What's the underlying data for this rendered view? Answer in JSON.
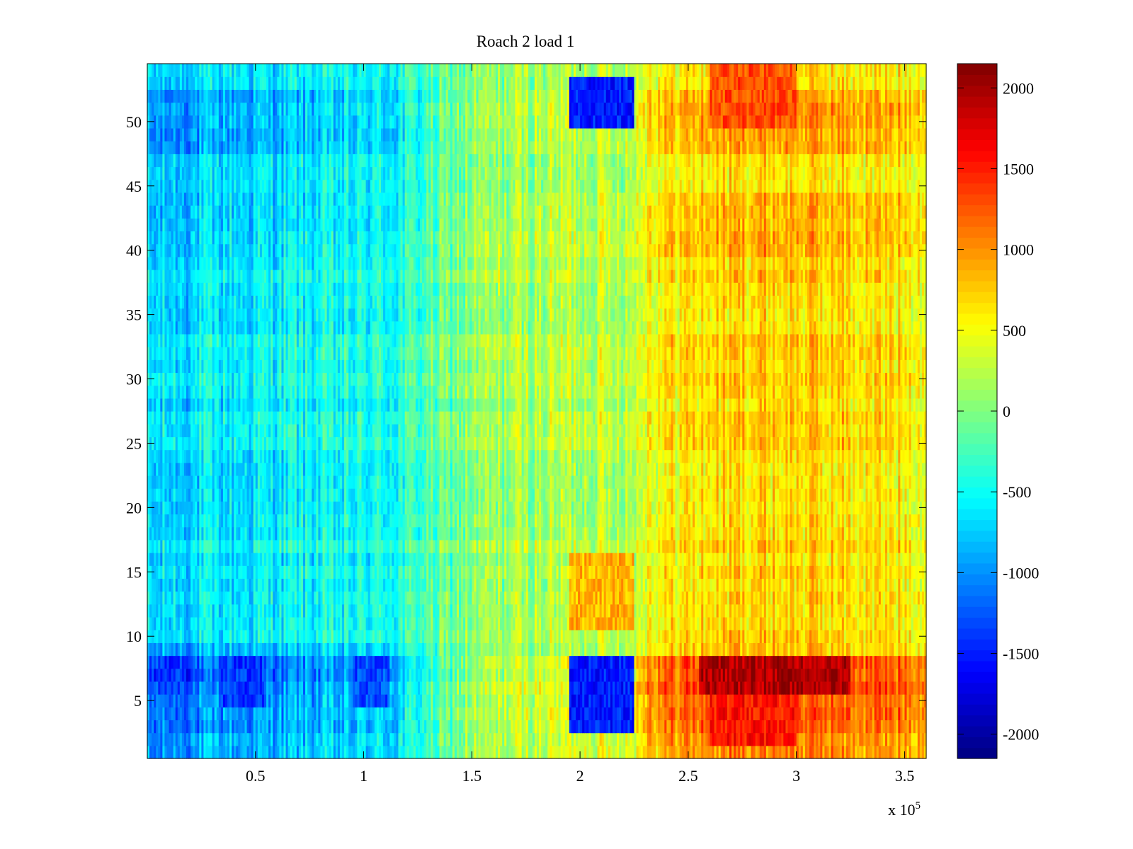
{
  "chart_data": {
    "type": "heatmap",
    "title": "Roach 2 load 1",
    "xlabel": "",
    "ylabel": "",
    "x_multiplier_label": "x 10",
    "x_multiplier_exponent": "5",
    "xlim": [
      0,
      3.6
    ],
    "ylim": [
      0.5,
      54.5
    ],
    "rows": 54,
    "x_ticks": [
      {
        "value": 0.5,
        "label": "0.5"
      },
      {
        "value": 1,
        "label": "1"
      },
      {
        "value": 1.5,
        "label": "1.5"
      },
      {
        "value": 2,
        "label": "2"
      },
      {
        "value": 2.5,
        "label": "2.5"
      },
      {
        "value": 3,
        "label": "3"
      },
      {
        "value": 3.5,
        "label": "3.5"
      }
    ],
    "y_ticks": [
      {
        "value": 5,
        "label": "5"
      },
      {
        "value": 10,
        "label": "10"
      },
      {
        "value": 15,
        "label": "15"
      },
      {
        "value": 20,
        "label": "20"
      },
      {
        "value": 25,
        "label": "25"
      },
      {
        "value": 30,
        "label": "30"
      },
      {
        "value": 35,
        "label": "35"
      },
      {
        "value": 40,
        "label": "40"
      },
      {
        "value": 45,
        "label": "45"
      },
      {
        "value": 50,
        "label": "50"
      }
    ],
    "colorbar": {
      "colormap": "jet",
      "range": [
        -2150,
        2150
      ],
      "ticks": [
        {
          "value": 2000,
          "label": "2000"
        },
        {
          "value": 1500,
          "label": "1500"
        },
        {
          "value": 1000,
          "label": "1000"
        },
        {
          "value": 500,
          "label": "500"
        },
        {
          "value": 0,
          "label": "0"
        },
        {
          "value": -500,
          "label": "-500"
        },
        {
          "value": -1000,
          "label": "-1000"
        },
        {
          "value": -1500,
          "label": "-1500"
        },
        {
          "value": -2000,
          "label": "-2000"
        }
      ]
    },
    "column_profile": {
      "x": [
        0,
        0.2,
        0.3,
        0.5,
        0.7,
        0.95,
        1.15,
        1.3,
        1.5,
        1.7,
        1.93,
        1.95,
        2.25,
        2.3,
        2.5,
        2.8,
        3.1,
        3.3,
        3.6
      ],
      "values": [
        -700,
        -650,
        -600,
        -580,
        -520,
        -500,
        -420,
        -200,
        50,
        150,
        220,
        250,
        280,
        550,
        650,
        750,
        720,
        650,
        620
      ]
    },
    "row_bands": [
      {
        "rows": [
          6,
          8
        ],
        "intensity": 2.4
      },
      {
        "rows": [
          3,
          5
        ],
        "intensity": 1.8
      },
      {
        "rows": [
          1,
          2
        ],
        "intensity": 1.2
      },
      {
        "rows": [
          9,
          9
        ],
        "intensity": 0.6
      },
      {
        "rows": [
          48,
          52
        ],
        "intensity": 1.0
      },
      {
        "rows": [
          40,
          44
        ],
        "intensity": 0.5
      }
    ],
    "regions": [
      {
        "x": [
          1.95,
          2.25
        ],
        "rows": [
          3,
          8
        ],
        "value": -1500
      },
      {
        "x": [
          1.95,
          2.25
        ],
        "rows": [
          50,
          53
        ],
        "value": -1500
      },
      {
        "x": [
          1.95,
          2.25
        ],
        "rows": [
          11,
          16
        ],
        "value": 850
      },
      {
        "x": [
          2.55,
          3.25
        ],
        "rows": [
          6,
          8
        ],
        "value": 1950
      },
      {
        "x": [
          2.6,
          3.0
        ],
        "rows": [
          2,
          5
        ],
        "value": 1550
      },
      {
        "x": [
          2.6,
          3.0
        ],
        "rows": [
          50,
          54
        ],
        "value": 1300
      },
      {
        "x": [
          0.35,
          0.55
        ],
        "rows": [
          5,
          8
        ],
        "value": -1400
      },
      {
        "x": [
          0.95,
          1.12
        ],
        "rows": [
          5,
          8
        ],
        "value": -1300
      },
      {
        "x": [
          0.05,
          0.15
        ],
        "rows": [
          6,
          8
        ],
        "value": -1400
      }
    ]
  }
}
